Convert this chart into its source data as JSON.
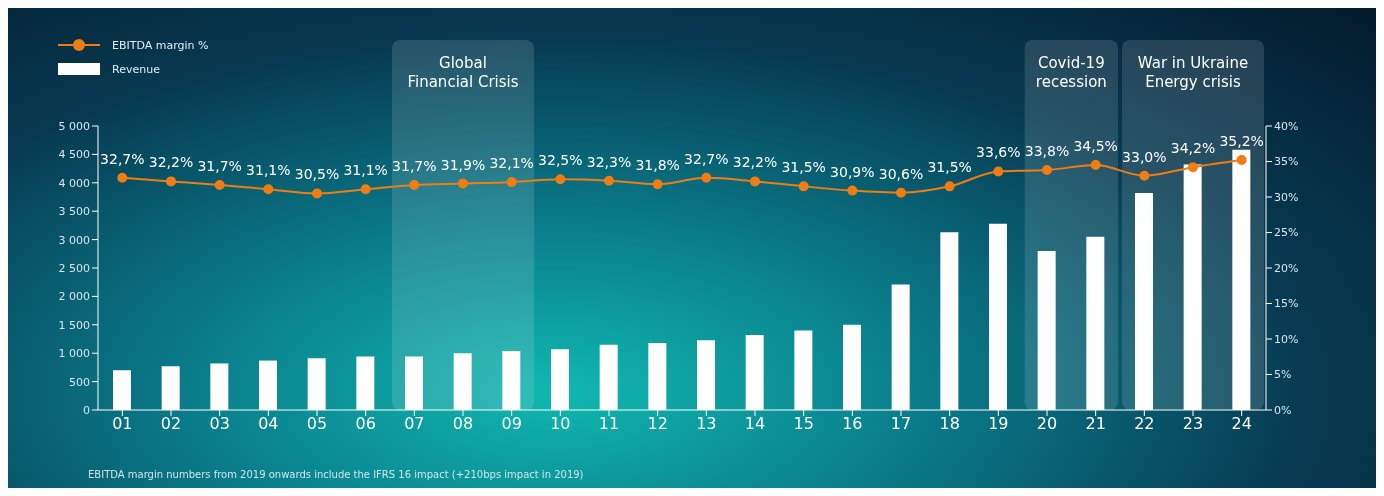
{
  "chart_data": {
    "type": "bar",
    "categories": [
      "01",
      "02",
      "03",
      "04",
      "05",
      "06",
      "07",
      "08",
      "09",
      "10",
      "11",
      "12",
      "13",
      "14",
      "15",
      "16",
      "17",
      "18",
      "19",
      "20",
      "21",
      "22",
      "23",
      "24"
    ],
    "series": [
      {
        "name": "Revenue",
        "color": "#ffffff",
        "values": [
          700,
          770,
          820,
          870,
          910,
          940,
          940,
          1000,
          1040,
          1070,
          1150,
          1180,
          1230,
          1320,
          1400,
          1500,
          2210,
          3130,
          3280,
          2800,
          3050,
          3820,
          4320,
          4580
        ]
      },
      {
        "name": "EBITDA margin %",
        "type": "line",
        "axis": "y2",
        "color": "#f07c14",
        "marker": "circle",
        "values": [
          32.7,
          32.2,
          31.7,
          31.1,
          30.5,
          31.1,
          31.7,
          31.9,
          32.1,
          32.5,
          32.3,
          31.8,
          32.7,
          32.2,
          31.5,
          30.9,
          30.6,
          31.5,
          33.6,
          33.8,
          34.5,
          33.0,
          34.2,
          35.2
        ],
        "value_labels": [
          "32,7%",
          "32,2%",
          "31,7%",
          "31,1%",
          "30,5%",
          "31,1%",
          "31,7%",
          "31,9%",
          "32,1%",
          "32,5%",
          "32,3%",
          "31,8%",
          "32,7%",
          "32,2%",
          "31,5%",
          "30,9%",
          "30,6%",
          "31,5%",
          "33,6%",
          "33,8%",
          "34,5%",
          "33,0%",
          "34,2%",
          "35,2%"
        ]
      }
    ],
    "ylim": [
      0,
      5000
    ],
    "yticks": [
      0,
      500,
      {
        "value": 1000,
        "label": "1 000"
      },
      {
        "value": 1500,
        "label": "1 500"
      },
      {
        "value": 2000,
        "label": "2 000"
      },
      {
        "value": 2500,
        "label": "2 500"
      },
      {
        "value": 3000,
        "label": "3 000"
      },
      {
        "value": 3500,
        "label": "3 500"
      },
      {
        "value": 4000,
        "label": "4 000"
      },
      {
        "value": 4500,
        "label": "4 500"
      },
      {
        "value": 5000,
        "label": "5 000"
      }
    ],
    "y2lim": [
      0,
      40
    ],
    "y2ticks": [
      {
        "value": 0,
        "label": "0%"
      },
      {
        "value": 5,
        "label": "5%"
      },
      {
        "value": 10,
        "label": "10%"
      },
      {
        "value": 15,
        "label": "15%"
      },
      {
        "value": 20,
        "label": "20%"
      },
      {
        "value": 25,
        "label": "25%"
      },
      {
        "value": 30,
        "label": "30%"
      },
      {
        "value": 35,
        "label": "35%"
      },
      {
        "value": 40,
        "label": "40%"
      }
    ],
    "bands": [
      {
        "axis": "x",
        "from": "07",
        "to": "09",
        "label": "Global\nFinancial Crisis",
        "color": "#ffffff"
      },
      {
        "axis": "x",
        "from": "20",
        "to": "21",
        "label": "Covid-19\nrecession",
        "color": "#ffffff"
      },
      {
        "axis": "x",
        "from": "22",
        "to": "24",
        "label": "War in Ukraine\nEnergy crisis",
        "color": "#ffffff"
      }
    ],
    "legend": "top left",
    "grid": false,
    "annotations": [
      "EBITDA margin numbers from 2019 onwards include the IFRS 16 impact (+210bps impact in 2019)"
    ]
  }
}
